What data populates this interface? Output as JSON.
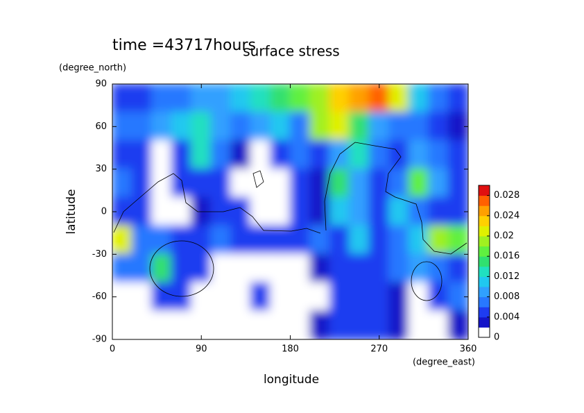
{
  "chart_data": {
    "type": "contour",
    "title": "surface stress",
    "subtitle": "time =43717hours",
    "x_label": "longitude",
    "x_unit": "(degree_east)",
    "y_label": "latitude",
    "y_unit": "(degree_north)",
    "xlim": [
      0,
      360
    ],
    "xticks": [
      0,
      90,
      180,
      270,
      360
    ],
    "ylim": [
      -90,
      90
    ],
    "yticks": [
      -90,
      -60,
      -30,
      0,
      30,
      60,
      90
    ],
    "clim": [
      0,
      0.03
    ],
    "cticks": [
      0,
      0.004,
      0.008,
      0.012,
      0.016,
      0.02,
      0.024,
      0.028
    ],
    "colors": [
      "#ffffff",
      "#1414c8",
      "#1e3cf0",
      "#2878ff",
      "#30a0ff",
      "#20c8f0",
      "#20e0c0",
      "#30e070",
      "#60f040",
      "#a0f020",
      "#e0f000",
      "#ffd000",
      "#ffa000",
      "#ff6000",
      "#e01010"
    ],
    "x": [
      10,
      30,
      50,
      70,
      90,
      110,
      130,
      150,
      170,
      190,
      210,
      230,
      250,
      270,
      290,
      310,
      330,
      350
    ],
    "y": [
      80,
      60,
      40,
      20,
      0,
      -20,
      -40,
      -60,
      -80
    ],
    "z": [
      [
        0.004,
        0.005,
        0.006,
        0.007,
        0.008,
        0.009,
        0.01,
        0.012,
        0.014,
        0.016,
        0.018,
        0.022,
        0.024,
        0.026,
        0.02,
        0.01,
        0.006,
        0.004
      ],
      [
        0.006,
        0.006,
        0.008,
        0.01,
        0.012,
        0.008,
        0.006,
        0.008,
        0.01,
        0.006,
        0.018,
        0.02,
        0.014,
        0.008,
        0.006,
        0.006,
        0.004,
        0.002
      ],
      [
        0.004,
        0.004,
        0,
        0.004,
        0.012,
        0.006,
        0.002,
        0,
        0.004,
        0.006,
        0.004,
        0.008,
        0.012,
        0.006,
        0.004,
        0.008,
        0.006,
        0.004
      ],
      [
        0.006,
        0.004,
        0,
        0.004,
        0.004,
        0.004,
        0,
        0,
        0,
        0.004,
        0.002,
        0.014,
        0.008,
        0.004,
        0.006,
        0.016,
        0.008,
        0.004
      ],
      [
        0.004,
        0.004,
        0,
        0,
        0.002,
        0.004,
        0.004,
        0,
        0,
        0.004,
        0.002,
        0.01,
        0.008,
        0.004,
        0.01,
        0.006,
        0.004,
        0.004
      ],
      [
        0.02,
        0.006,
        0.006,
        0.004,
        0.004,
        0.006,
        0.004,
        0.004,
        0.004,
        0.004,
        0.006,
        0.004,
        0.01,
        0.004,
        0.006,
        0.01,
        0.018,
        0.016
      ],
      [
        0.006,
        0.006,
        0.014,
        0.004,
        0.004,
        0,
        0,
        0,
        0,
        0,
        0.002,
        0.004,
        0.004,
        0.004,
        0.006,
        0.008,
        0.006,
        0.004
      ],
      [
        0,
        0,
        0.004,
        0.004,
        0,
        0,
        0,
        0.004,
        0,
        0,
        0,
        0.004,
        0.004,
        0.004,
        0.002,
        0,
        0.004,
        0.006
      ],
      [
        0,
        0,
        0,
        0,
        0,
        0,
        0,
        0,
        0,
        0,
        0.002,
        0.004,
        0.004,
        0.004,
        0.002,
        0,
        0,
        0.002
      ]
    ]
  }
}
